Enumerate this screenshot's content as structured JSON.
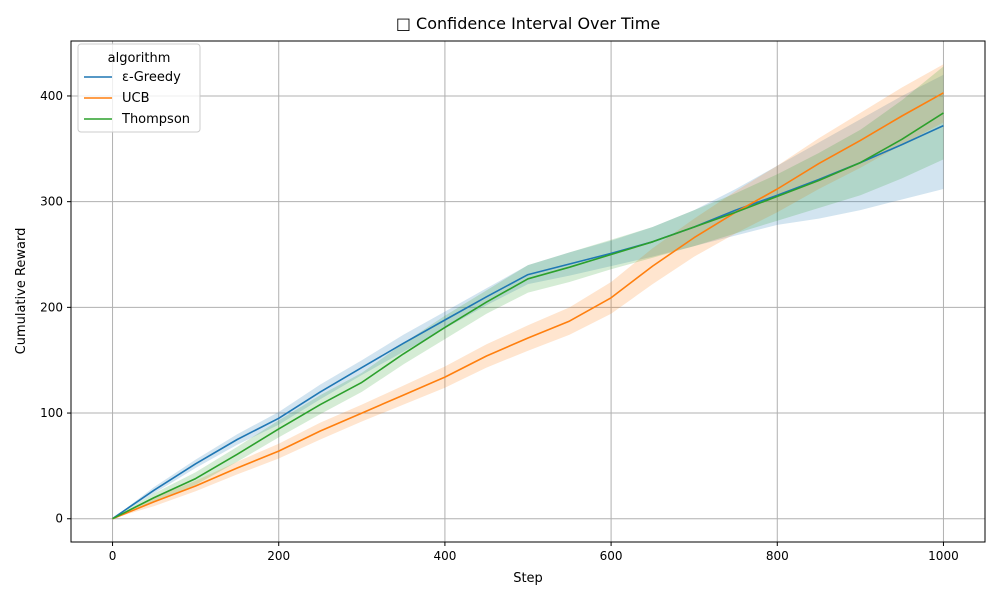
{
  "chart_data": {
    "type": "line",
    "title": "□ Confidence Interval Over Time",
    "xlabel": "Step",
    "ylabel": "Cumulative Reward",
    "xlim": [
      -50,
      1050
    ],
    "ylim": [
      -22,
      452
    ],
    "xticks": [
      0,
      200,
      400,
      600,
      800,
      1000
    ],
    "yticks": [
      0,
      100,
      200,
      300,
      400
    ],
    "grid": true,
    "legend": {
      "title": "algorithm",
      "placement": "top-left"
    },
    "series": [
      {
        "name": "ε-Greedy",
        "color": "#1f77b4",
        "x": [
          0,
          50,
          100,
          150,
          200,
          250,
          300,
          350,
          400,
          450,
          500,
          550,
          600,
          650,
          700,
          750,
          800,
          850,
          900,
          950,
          1000
        ],
        "y": [
          0,
          27,
          52,
          75,
          95,
          120,
          143,
          166,
          188,
          210,
          231,
          241,
          251,
          262,
          276,
          292,
          306,
          321,
          337,
          354,
          372
        ],
        "lower": [
          0,
          24,
          48,
          70,
          89,
          113,
          136,
          158,
          180,
          202,
          222,
          230,
          239,
          248,
          258,
          268,
          278,
          284,
          292,
          302,
          312
        ],
        "upper": [
          0,
          30,
          56,
          80,
          101,
          127,
          150,
          174,
          196,
          218,
          240,
          252,
          263,
          276,
          292,
          312,
          334,
          356,
          378,
          400,
          420
        ]
      },
      {
        "name": "UCB",
        "color": "#ff7f0e",
        "x": [
          0,
          50,
          100,
          150,
          200,
          250,
          300,
          350,
          400,
          450,
          500,
          550,
          600,
          650,
          700,
          750,
          800,
          850,
          900,
          950,
          1000
        ],
        "y": [
          0,
          16,
          31,
          48,
          64,
          83,
          100,
          117,
          134,
          154,
          171,
          187,
          209,
          239,
          266,
          290,
          312,
          336,
          358,
          381,
          403
        ],
        "lower": [
          0,
          12,
          26,
          42,
          57,
          75,
          92,
          108,
          124,
          143,
          159,
          174,
          194,
          222,
          248,
          270,
          290,
          312,
          332,
          354,
          375
        ],
        "upper": [
          0,
          20,
          36,
          54,
          71,
          91,
          108,
          126,
          144,
          165,
          183,
          200,
          224,
          256,
          284,
          310,
          334,
          360,
          384,
          408,
          430
        ]
      },
      {
        "name": "Thompson",
        "color": "#2ca02c",
        "x": [
          0,
          50,
          100,
          150,
          200,
          250,
          300,
          350,
          400,
          450,
          500,
          550,
          600,
          650,
          700,
          750,
          800,
          850,
          900,
          950,
          1000
        ],
        "y": [
          0,
          20,
          38,
          61,
          85,
          108,
          129,
          156,
          181,
          205,
          227,
          238,
          250,
          262,
          276,
          290,
          305,
          320,
          337,
          359,
          384
        ],
        "lower": [
          0,
          16,
          32,
          54,
          77,
          99,
          120,
          146,
          170,
          194,
          214,
          224,
          236,
          247,
          258,
          270,
          282,
          294,
          306,
          322,
          340
        ],
        "upper": [
          0,
          24,
          44,
          68,
          93,
          117,
          138,
          166,
          192,
          216,
          240,
          252,
          264,
          276,
          292,
          308,
          326,
          346,
          368,
          396,
          428
        ]
      }
    ]
  }
}
